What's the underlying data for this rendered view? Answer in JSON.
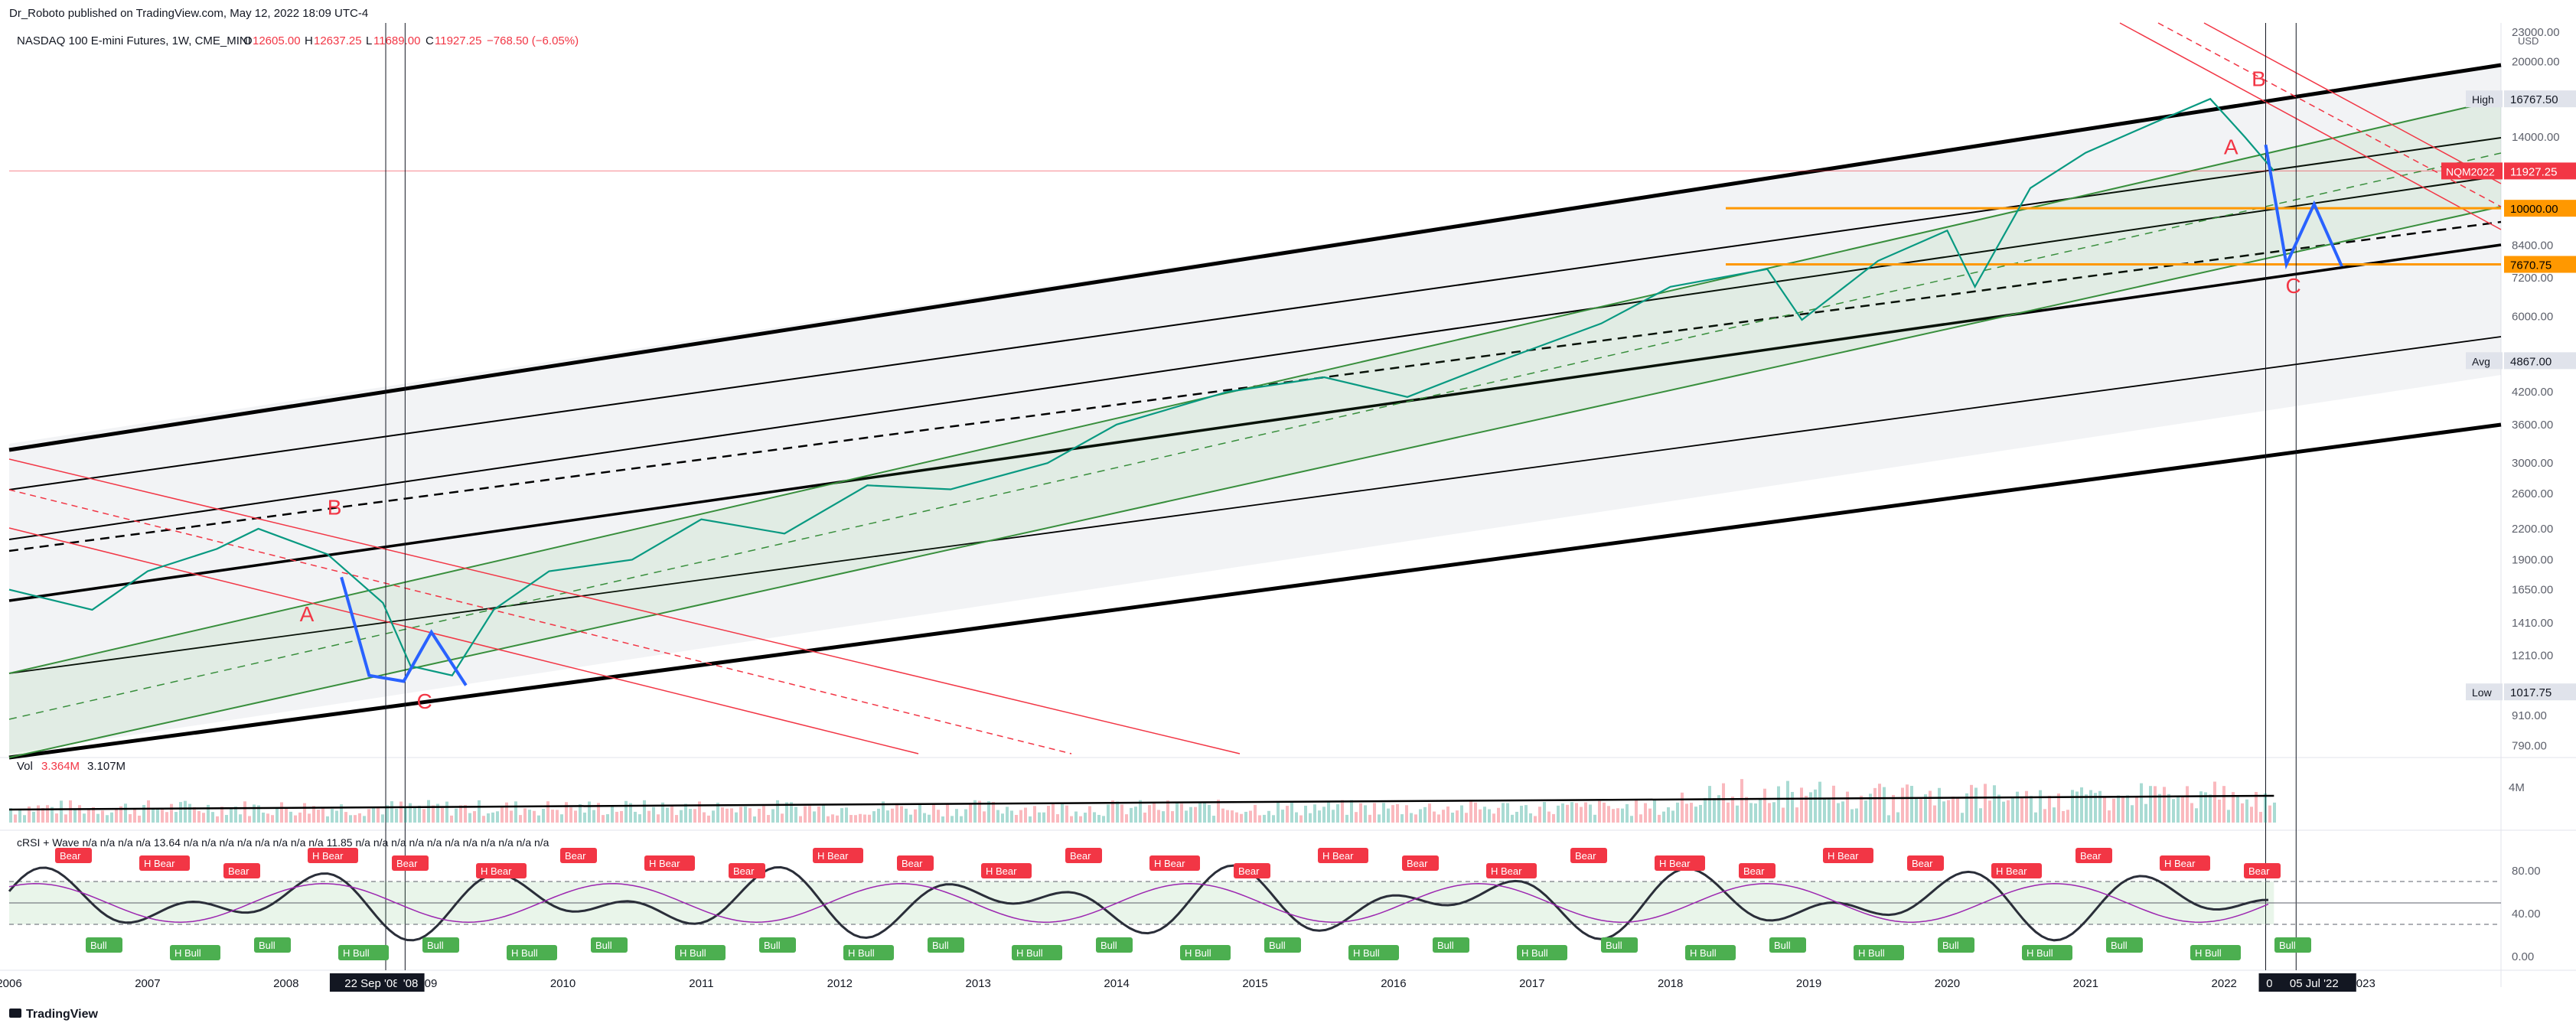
{
  "header": {
    "publisher": "Dr_Roboto published on TradingView.com, May 12, 2022 18:09 UTC-4",
    "symbol_line": "NASDAQ 100 E-mini Futures, 1W, CME_MINI",
    "ohlc": {
      "o_label": "O",
      "o": "12605.00",
      "h_label": "H",
      "h": "12637.25",
      "l_label": "L",
      "l": "11689.00",
      "c_label": "C",
      "c": "11927.25",
      "change": "−768.50 (−6.05%)"
    }
  },
  "footer": {
    "brand": "TradingView"
  },
  "chart_data": {
    "type": "line",
    "scale": "log",
    "price_axis": {
      "currency": "USD",
      "ticks": [
        23000,
        20000,
        16767.5,
        14000,
        11927.25,
        10000,
        8400,
        7670.75,
        7200,
        6000,
        4867,
        4200,
        3600,
        3000,
        2600,
        2200,
        1900,
        1650,
        1410,
        1210,
        1017.75,
        910,
        790
      ],
      "tick_labels": [
        "23000.00",
        "20000.00",
        "16767.50",
        "14000.00",
        "11927.25",
        "10000.00",
        "8400.00",
        "7670.75",
        "7200.00",
        "6000.00",
        "4867.00",
        "4200.00",
        "3600.00",
        "3000.00",
        "2600.00",
        "2200.00",
        "1900.00",
        "1650.00",
        "1410.00",
        "1210.00",
        "1017.75",
        "910.00",
        "790.00"
      ],
      "ylim": [
        760,
        24000
      ]
    },
    "time_axis": {
      "tick_labels": [
        "2006",
        "2007",
        "2008",
        "2009",
        "2010",
        "2011",
        "2012",
        "2013",
        "2014",
        "2015",
        "2016",
        "2017",
        "2018",
        "2019",
        "2020",
        "2021",
        "2022",
        "2023"
      ],
      "xlim": [
        2006.0,
        2024.0
      ],
      "cursor_labels": [
        "22 Sep '08",
        "'08",
        "09",
        "05 Jul '22"
      ]
    },
    "price_series": {
      "name": "NQM2022",
      "points": [
        [
          2006.0,
          1650
        ],
        [
          2006.6,
          1500
        ],
        [
          2007.0,
          1800
        ],
        [
          2007.5,
          2000
        ],
        [
          2007.8,
          2200
        ],
        [
          2008.3,
          1950
        ],
        [
          2008.7,
          1550
        ],
        [
          2008.9,
          1150
        ],
        [
          2009.2,
          1100
        ],
        [
          2009.5,
          1500
        ],
        [
          2009.9,
          1800
        ],
        [
          2010.5,
          1900
        ],
        [
          2011.0,
          2300
        ],
        [
          2011.6,
          2150
        ],
        [
          2012.2,
          2700
        ],
        [
          2012.8,
          2650
        ],
        [
          2013.5,
          3000
        ],
        [
          2014.0,
          3600
        ],
        [
          2014.8,
          4200
        ],
        [
          2015.5,
          4500
        ],
        [
          2016.1,
          4100
        ],
        [
          2016.8,
          4900
        ],
        [
          2017.5,
          5800
        ],
        [
          2018.0,
          6900
        ],
        [
          2018.7,
          7500
        ],
        [
          2018.95,
          5900
        ],
        [
          2019.5,
          7800
        ],
        [
          2020.0,
          9000
        ],
        [
          2020.2,
          6900
        ],
        [
          2020.6,
          11000
        ],
        [
          2021.0,
          13000
        ],
        [
          2021.5,
          15000
        ],
        [
          2021.9,
          16767.5
        ],
        [
          2022.15,
          14000
        ],
        [
          2022.36,
          11927.25
        ]
      ],
      "current": 11927.25,
      "symbol_label": "NQM2022"
    },
    "level_labels": [
      {
        "label": "High",
        "value": 16767.5,
        "text": "16767.50"
      },
      {
        "label": "Avg",
        "value": 4867.0,
        "text": "4867.00"
      },
      {
        "label": "Low",
        "value": 1017.75,
        "text": "1017.75"
      },
      {
        "label": "",
        "value": 10000.0,
        "text": "10000.00",
        "color": "#ff9800"
      },
      {
        "label": "",
        "value": 7670.75,
        "text": "7670.75",
        "color": "#ff9800"
      }
    ],
    "wave_labels": [
      {
        "text": "B",
        "t": 2008.35,
        "p": 2350
      },
      {
        "text": "A",
        "t": 2008.15,
        "p": 1420
      },
      {
        "text": "C",
        "t": 2009.0,
        "p": 940
      },
      {
        "text": "B",
        "t": 2022.25,
        "p": 17800
      },
      {
        "text": "A",
        "t": 2022.05,
        "p": 12900
      },
      {
        "text": "C",
        "t": 2022.5,
        "p": 6700
      }
    ],
    "volume": {
      "label": "Vol",
      "value1": "3.364M",
      "value2": "3.107M",
      "axis_label": "4M"
    },
    "oscillator": {
      "title": "cRSI + Wave  n/a  n/a  n/a  n/a  13.64  n/a  n/a  n/a  n/a  n/a  n/a  n/a  n/a  11.85  n/a  n/a  n/a  n/a  n/a  n/a  n/a  n/a  n/a  n/a  n/a",
      "axis_ticks": [
        80,
        40,
        0
      ],
      "axis_labels": [
        "80.00",
        "40.00",
        "0.00"
      ],
      "bear_labels": [
        "Bear",
        "H Bear"
      ],
      "bull_labels": [
        "Bull",
        "H Bull"
      ]
    }
  }
}
